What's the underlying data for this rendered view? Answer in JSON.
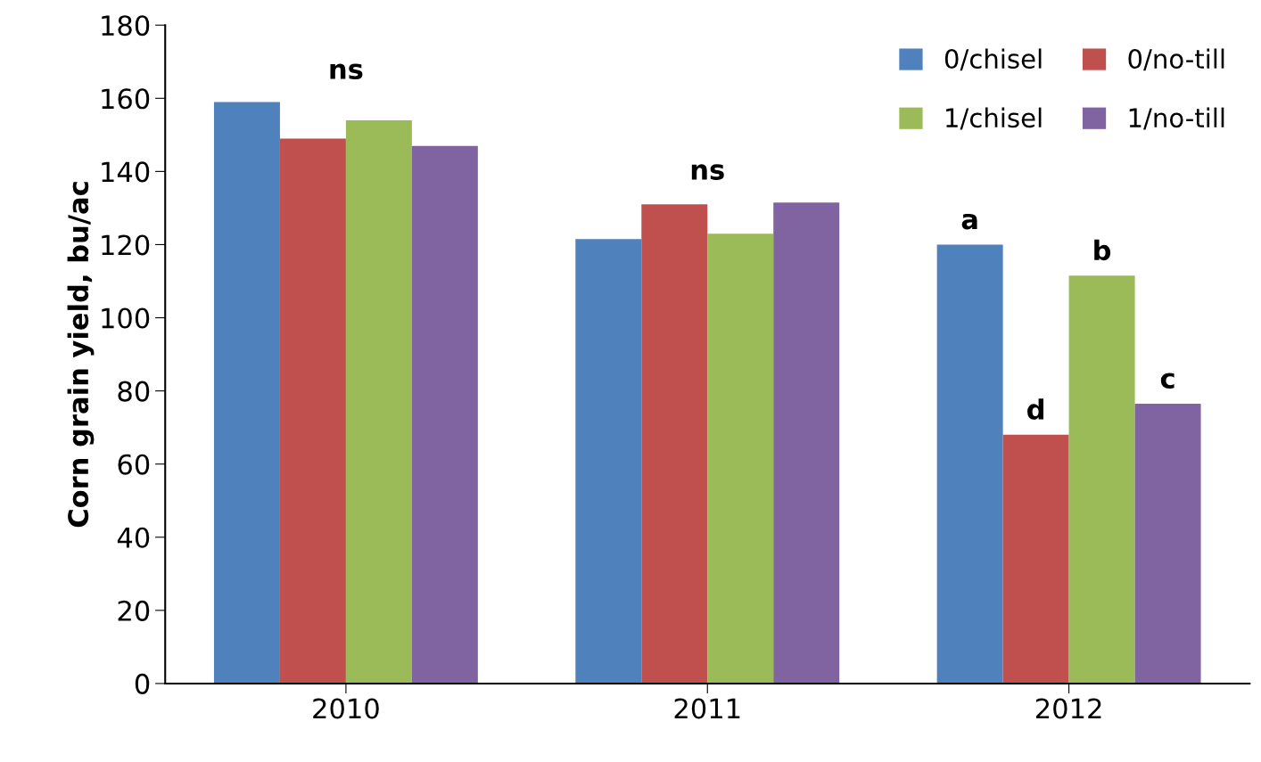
{
  "chart_data": {
    "type": "bar",
    "ylabel": "Corn grain yield, bu/ac",
    "categories": [
      "2010",
      "2011",
      "2012"
    ],
    "series": [
      {
        "name": "0/chisel",
        "color": "#4f81bd",
        "values": [
          159,
          121.5,
          120
        ],
        "value_labels": [
          null,
          null,
          "a"
        ]
      },
      {
        "name": "0/no-till",
        "color": "#c0504d",
        "values": [
          149,
          131,
          68
        ],
        "value_labels": [
          null,
          null,
          "d"
        ]
      },
      {
        "name": "1/chisel",
        "color": "#9bbb59",
        "values": [
          154,
          123,
          111.5
        ],
        "value_labels": [
          null,
          null,
          "b"
        ]
      },
      {
        "name": "1/no-till",
        "color": "#8064a2",
        "values": [
          147,
          131.5,
          76.5
        ],
        "value_labels": [
          null,
          null,
          "c"
        ]
      }
    ],
    "annotations": [
      "ns",
      "ns"
    ],
    "ylim": [
      0,
      180
    ],
    "yticks": [
      0,
      20,
      40,
      60,
      80,
      100,
      120,
      140,
      160,
      180
    ],
    "grid": false,
    "legend": "top right"
  }
}
